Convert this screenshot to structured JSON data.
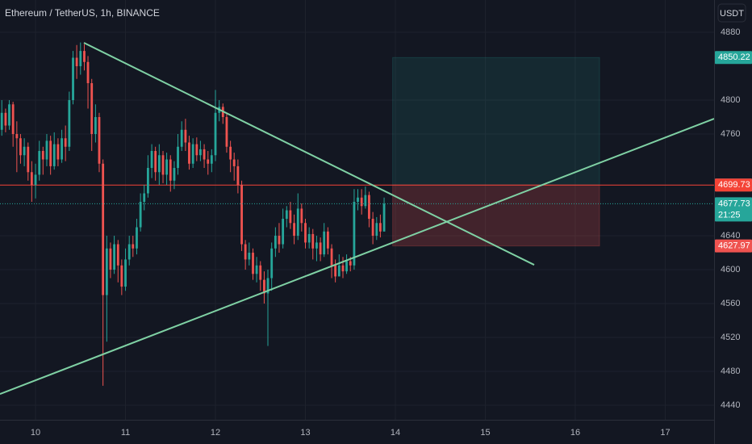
{
  "chart_data": {
    "type": "candlestick",
    "title": "Ethereum / TetherUS, 1h, BINANCE",
    "currency": "USDT",
    "up_color": "#26a69a",
    "down_color": "#ef5350",
    "grid": true,
    "xlim": [
      9.605,
      17.543
    ],
    "ylim": [
      4422.9,
      4918.1
    ],
    "xticks": [
      10,
      11,
      12,
      13,
      14,
      15,
      16,
      17
    ],
    "yticks": [
      4440,
      4480,
      4520,
      4560,
      4600,
      4640,
      4760,
      4800,
      4880
    ],
    "x": [
      9.625,
      9.667,
      9.708,
      9.75,
      9.792,
      9.833,
      9.875,
      9.917,
      9.958,
      10,
      10.042,
      10.083,
      10.125,
      10.167,
      10.208,
      10.25,
      10.292,
      10.333,
      10.375,
      10.417,
      10.458,
      10.5,
      10.542,
      10.583,
      10.625,
      10.667,
      10.708,
      10.75,
      10.792,
      10.833,
      10.875,
      10.917,
      10.958,
      11,
      11.042,
      11.083,
      11.125,
      11.167,
      11.208,
      11.25,
      11.292,
      11.333,
      11.375,
      11.417,
      11.458,
      11.5,
      11.542,
      11.583,
      11.625,
      11.667,
      11.708,
      11.75,
      11.792,
      11.833,
      11.875,
      11.917,
      11.958,
      12,
      12.042,
      12.083,
      12.125,
      12.167,
      12.208,
      12.25,
      12.292,
      12.333,
      12.375,
      12.417,
      12.458,
      12.5,
      12.542,
      12.583,
      12.625,
      12.667,
      12.708,
      12.75,
      12.792,
      12.833,
      12.875,
      12.917,
      12.958,
      13,
      13.042,
      13.083,
      13.125,
      13.167,
      13.208,
      13.25,
      13.292,
      13.333,
      13.375,
      13.417,
      13.458,
      13.5,
      13.542,
      13.583,
      13.625,
      13.667,
      13.708,
      13.75,
      13.792,
      13.833,
      13.875
    ],
    "open": [
      4765,
      4785,
      4770,
      4795,
      4760,
      4755,
      4735,
      4745,
      4715,
      4700,
      4712,
      4740,
      4730,
      4752,
      4722,
      4748,
      4730,
      4755,
      4745,
      4800,
      4850,
      4840,
      4858,
      4845,
      4820,
      4760,
      4780,
      4725,
      4570,
      4625,
      4600,
      4630,
      4605,
      4580,
      4612,
      4630,
      4625,
      4650,
      4680,
      4690,
      4720,
      4740,
      4715,
      4735,
      4712,
      4730,
      4705,
      4720,
      4745,
      4765,
      4750,
      4725,
      4748,
      4735,
      4742,
      4730,
      4725,
      4735,
      4785,
      4792,
      4780,
      4745,
      4730,
      4722,
      4700,
      4630,
      4612,
      4620,
      4595,
      4605,
      4588,
      4572,
      4590,
      4625,
      4640,
      4630,
      4660,
      4670,
      4655,
      4640,
      4672,
      4655,
      4632,
      4642,
      4625,
      4632,
      4618,
      4645,
      4625,
      4605,
      4592,
      4605,
      4598,
      4610,
      4605,
      4680,
      4685,
      4675,
      4688,
      4660,
      4640,
      4655,
      4645
    ],
    "high": [
      4800,
      4790,
      4800,
      4798,
      4775,
      4760,
      4755,
      4750,
      4728,
      4725,
      4752,
      4745,
      4760,
      4758,
      4762,
      4755,
      4765,
      4770,
      4810,
      4858,
      4865,
      4868,
      4866,
      4852,
      4825,
      4795,
      4785,
      4730,
      4640,
      4632,
      4640,
      4635,
      4612,
      4625,
      4640,
      4640,
      4660,
      4690,
      4700,
      4735,
      4748,
      4745,
      4748,
      4740,
      4738,
      4735,
      4728,
      4760,
      4775,
      4778,
      4758,
      4755,
      4756,
      4752,
      4748,
      4740,
      4742,
      4812,
      4800,
      4796,
      4785,
      4752,
      4738,
      4730,
      4705,
      4635,
      4632,
      4625,
      4615,
      4610,
      4598,
      4600,
      4632,
      4650,
      4655,
      4672,
      4675,
      4680,
      4665,
      4690,
      4678,
      4660,
      4650,
      4648,
      4640,
      4638,
      4655,
      4650,
      4630,
      4612,
      4618,
      4615,
      4618,
      4615,
      4695,
      4695,
      4695,
      4698,
      4692,
      4668,
      4662,
      4665,
      4685
    ],
    "low": [
      4758,
      4762,
      4765,
      4745,
      4715,
      4725,
      4722,
      4705,
      4680,
      4684,
      4705,
      4712,
      4722,
      4712,
      4718,
      4722,
      4726,
      4728,
      4740,
      4795,
      4825,
      4830,
      4835,
      4790,
      4740,
      4750,
      4715,
      4463,
      4515,
      4590,
      4595,
      4585,
      4570,
      4575,
      4605,
      4615,
      4618,
      4645,
      4670,
      4685,
      4708,
      4705,
      4700,
      4702,
      4700,
      4692,
      4695,
      4712,
      4740,
      4740,
      4718,
      4720,
      4728,
      4728,
      4720,
      4712,
      4715,
      4728,
      4775,
      4772,
      4738,
      4715,
      4705,
      4690,
      4622,
      4600,
      4605,
      4588,
      4585,
      4575,
      4560,
      4510,
      4575,
      4615,
      4620,
      4625,
      4650,
      4648,
      4630,
      4635,
      4645,
      4625,
      4625,
      4612,
      4610,
      4610,
      4615,
      4618,
      4590,
      4585,
      4595,
      4590,
      4595,
      4598,
      4600,
      4670,
      4665,
      4672,
      4650,
      4630,
      4635,
      4638,
      4645
    ],
    "close": [
      4785,
      4770,
      4795,
      4760,
      4755,
      4735,
      4745,
      4715,
      4700,
      4712,
      4740,
      4730,
      4752,
      4722,
      4748,
      4730,
      4755,
      4745,
      4800,
      4850,
      4840,
      4858,
      4845,
      4820,
      4760,
      4780,
      4725,
      4570,
      4625,
      4600,
      4630,
      4605,
      4580,
      4612,
      4630,
      4625,
      4650,
      4680,
      4690,
      4720,
      4740,
      4715,
      4735,
      4712,
      4730,
      4705,
      4720,
      4745,
      4765,
      4750,
      4725,
      4748,
      4735,
      4742,
      4730,
      4725,
      4735,
      4785,
      4792,
      4780,
      4745,
      4730,
      4722,
      4700,
      4630,
      4612,
      4620,
      4595,
      4605,
      4588,
      4572,
      4590,
      4625,
      4640,
      4630,
      4660,
      4670,
      4655,
      4640,
      4672,
      4655,
      4632,
      4642,
      4625,
      4632,
      4618,
      4645,
      4625,
      4605,
      4592,
      4605,
      4598,
      4610,
      4605,
      4680,
      4685,
      4675,
      4688,
      4660,
      4640,
      4655,
      4645,
      4677.73
    ],
    "trendlines": [
      {
        "x": [
          10.538,
          15.543
        ],
        "y": [
          4867.6,
          4605.7
        ],
        "color": "#7fd1a4"
      },
      {
        "x": [
          9.605,
          17.543
        ],
        "y": [
          4453.3,
          4778.1
        ],
        "color": "#7fd1a4"
      }
    ],
    "horizontal_line": {
      "value": 4699.73,
      "color": "#f44336"
    },
    "position": {
      "x": [
        13.97,
        16.27
      ],
      "entry": 4699.88,
      "target": 4850.22,
      "stop": 4627.97
    },
    "price_labels": [
      {
        "value": 4850.22,
        "color": "#26a69a"
      },
      {
        "value": 4699.88,
        "color": "#787b86"
      },
      {
        "value": 4699.73,
        "color": "#f44336"
      },
      {
        "value": 4677.73,
        "color": "#26a69a"
      },
      {
        "value": 4627.97,
        "color": "#ef5350"
      }
    ],
    "countdown": "21:25"
  }
}
